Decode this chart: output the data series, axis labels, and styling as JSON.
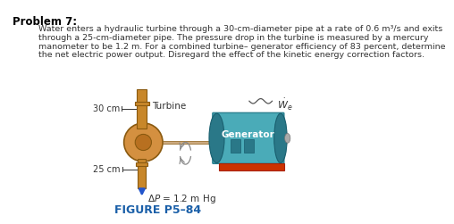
{
  "title": "Problem 7:",
  "body_text": [
    "Water enters a hydraulic turbine through a 30-cm-diameter pipe at a rate of 0.6 m³/s and exits",
    "through a 25-cm-diameter pipe. The pressure drop in the turbine is measured by a mercury",
    "manometer to be 1.2 m. For a combined turbine– generator efficiency of 83 percent, determine",
    "the net electric power output. Disregard the effect of the kinetic energy correction factors."
  ],
  "figure_label": "FIGURE P5–84",
  "label_30cm": "30 cm",
  "label_25cm": "25 cm",
  "label_turbine": "Turbine",
  "label_generator": "Generator",
  "label_delta_p": "ΔP = 1.2 m Hg",
  "label_we": "$\\dot{W}_e$",
  "bg_color": "#ffffff",
  "title_color": "#000000",
  "figure_label_color": "#1a5fa8",
  "body_text_color": "#333333",
  "arrow_color": "#2255cc",
  "pipe_color": "#c8872a",
  "pipe_edge_color": "#8a5a10",
  "disc_color": "#d49040",
  "disc_edge_color": "#8a5a10",
  "generator_body_color": "#4aabb8",
  "generator_dark_color": "#2a7888",
  "generator_end_color": "#3a9aaa",
  "generator_base_color": "#cc3300",
  "shaft_color": "#ccaa80",
  "rotation_color": "#888888",
  "wire_color": "#555555",
  "text_color": "#333333"
}
